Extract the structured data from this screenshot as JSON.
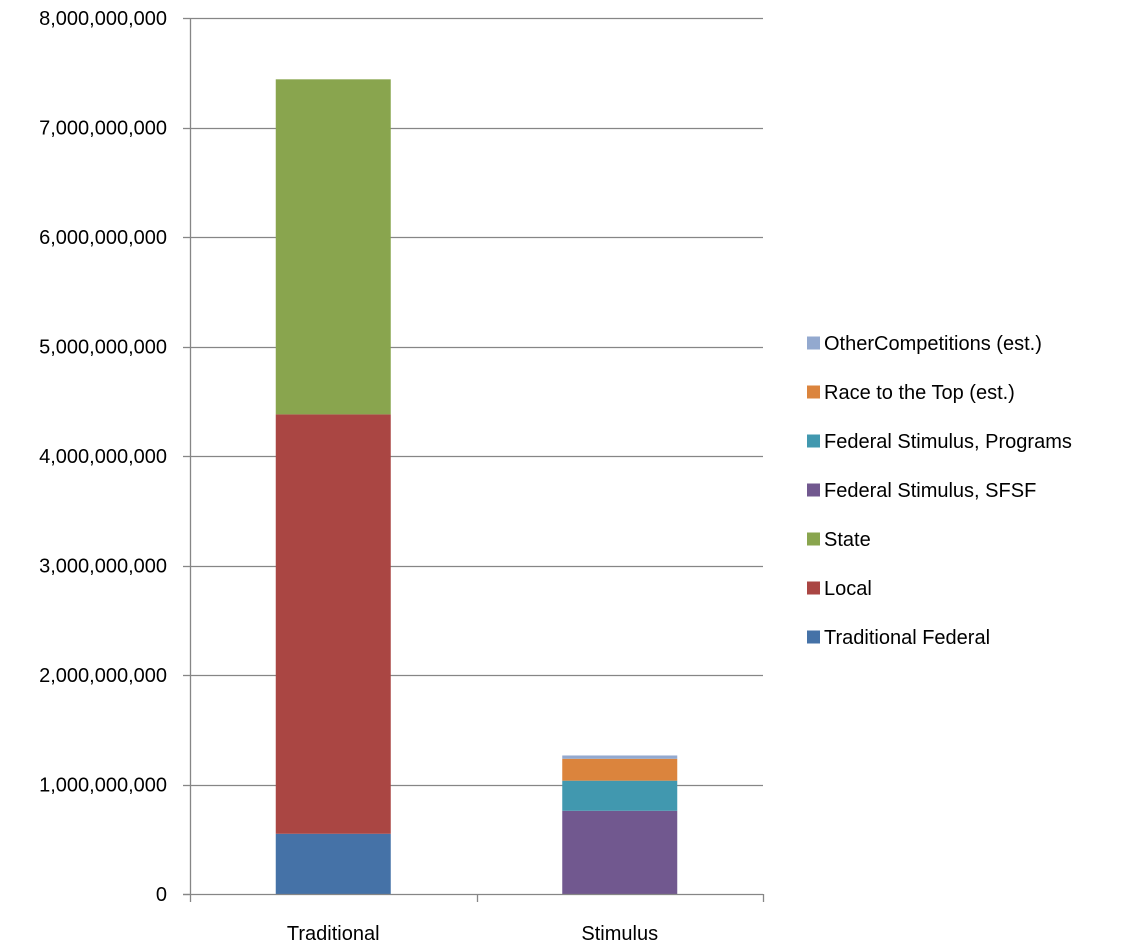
{
  "chart_data": {
    "type": "bar",
    "stacked": true,
    "categories": [
      "Traditional",
      "Stimulus"
    ],
    "series": [
      {
        "name": "Traditional Federal",
        "color": "#4572A7",
        "values": [
          550000000,
          0
        ]
      },
      {
        "name": "Local",
        "color": "#AA4643",
        "values": [
          3830000000,
          0
        ]
      },
      {
        "name": "State",
        "color": "#89A54E",
        "values": [
          3060000000,
          0
        ]
      },
      {
        "name": "Federal Stimulus, SFSF",
        "color": "#71588F",
        "values": [
          0,
          760000000
        ]
      },
      {
        "name": "Federal Stimulus, Programs",
        "color": "#4198AF",
        "values": [
          0,
          275000000
        ]
      },
      {
        "name": "Race to the Top (est.)",
        "color": "#DB843D",
        "values": [
          0,
          200000000
        ]
      },
      {
        "name": "OtherCompetitions (est.)",
        "color": "#93A9CF",
        "values": [
          0,
          30000000
        ]
      }
    ],
    "ylim": [
      0,
      8000000000
    ],
    "yticks": [
      0,
      1000000000,
      2000000000,
      3000000000,
      4000000000,
      5000000000,
      6000000000,
      7000000000,
      8000000000
    ],
    "ytick_labels": [
      "0",
      "1,000,000,000",
      "2,000,000,000",
      "3,000,000,000",
      "4,000,000,000",
      "5,000,000,000",
      "6,000,000,000",
      "7,000,000,000",
      "8,000,000,000"
    ],
    "grid": true,
    "legend_position": "right",
    "legend_order": [
      "OtherCompetitions (est.)",
      "Race to the Top (est.)",
      "Federal Stimulus, Programs",
      "Federal Stimulus, SFSF",
      "State",
      "Local",
      "Traditional Federal"
    ],
    "gridline_color": "#868686",
    "axis_color": "#868686"
  }
}
